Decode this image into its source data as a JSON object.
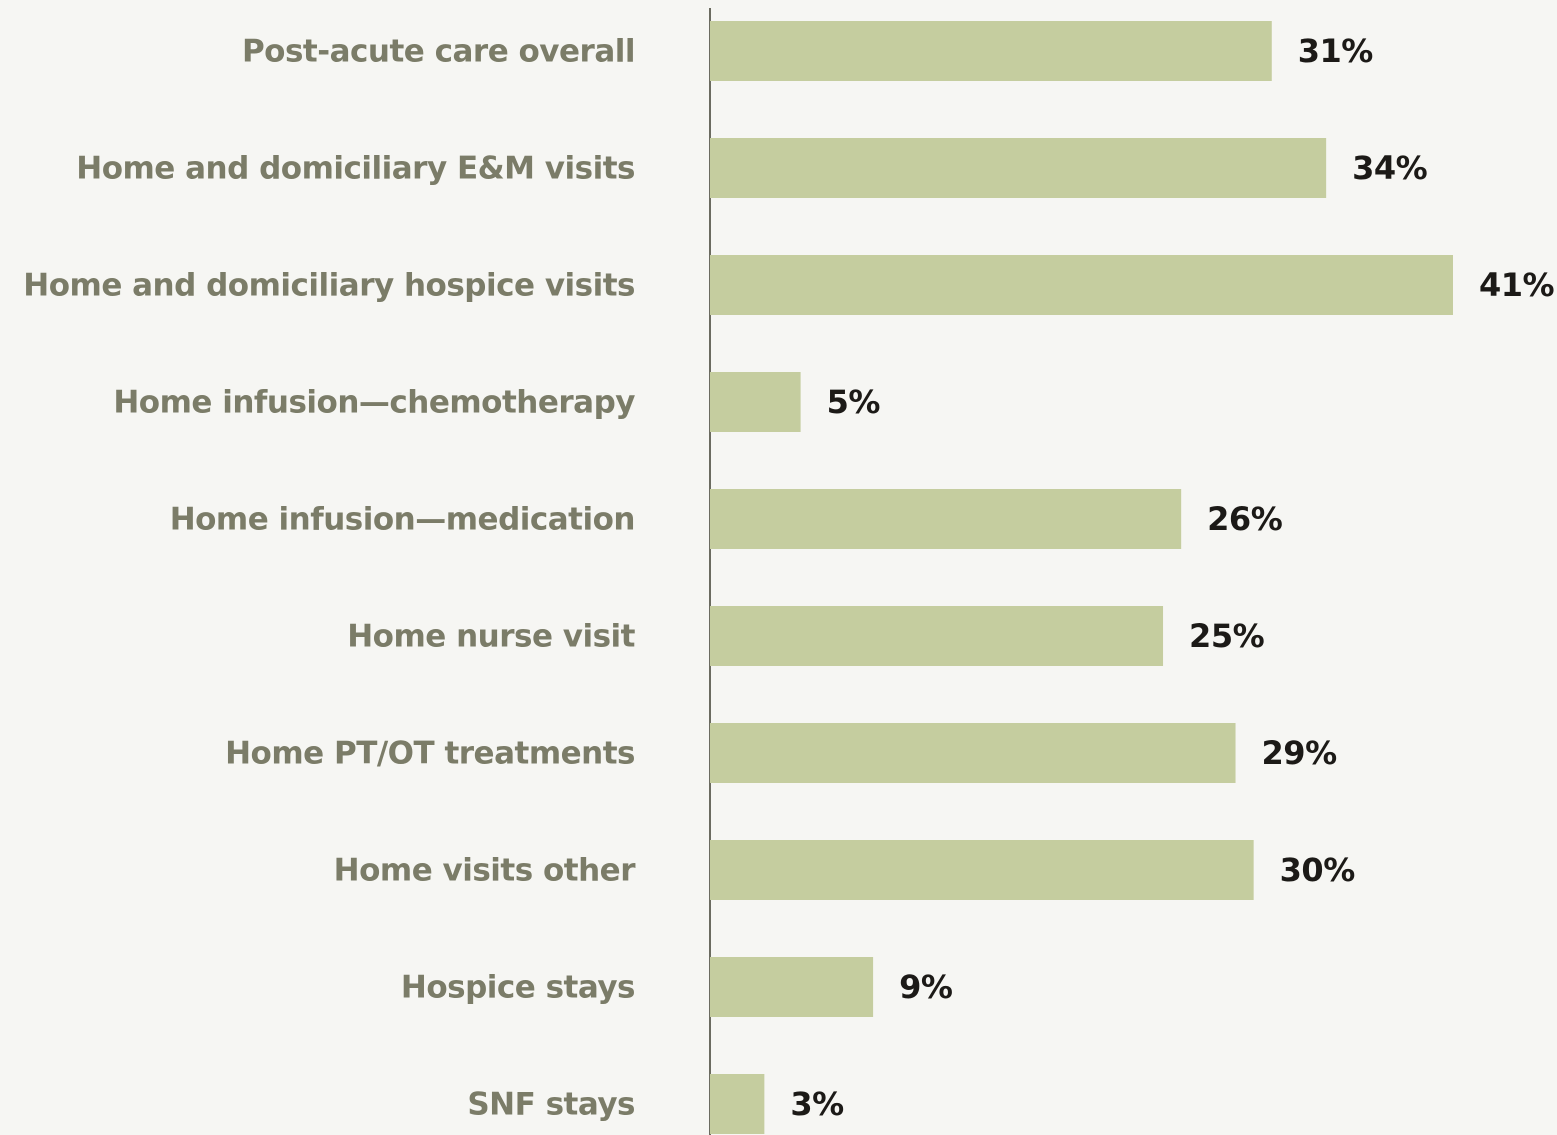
{
  "chart_data": {
    "type": "bar",
    "orientation": "horizontal",
    "categories": [
      "Post-acute care overall",
      "Home and domiciliary E&M visits",
      "Home and domiciliary hospice visits",
      "Home infusion—chemotherapy",
      "Home infusion—medication",
      "Home nurse visit",
      "Home PT/OT treatments",
      "Home visits other",
      "Hospice stays",
      "SNF stays"
    ],
    "values": [
      31,
      34,
      41,
      5,
      26,
      25,
      29,
      30,
      9,
      3
    ],
    "value_labels": [
      "31%",
      "34%",
      "41%",
      "5%",
      "26%",
      "25%",
      "29%",
      "30%",
      "9%",
      "3%"
    ],
    "color": "#c5cd9f"
  }
}
